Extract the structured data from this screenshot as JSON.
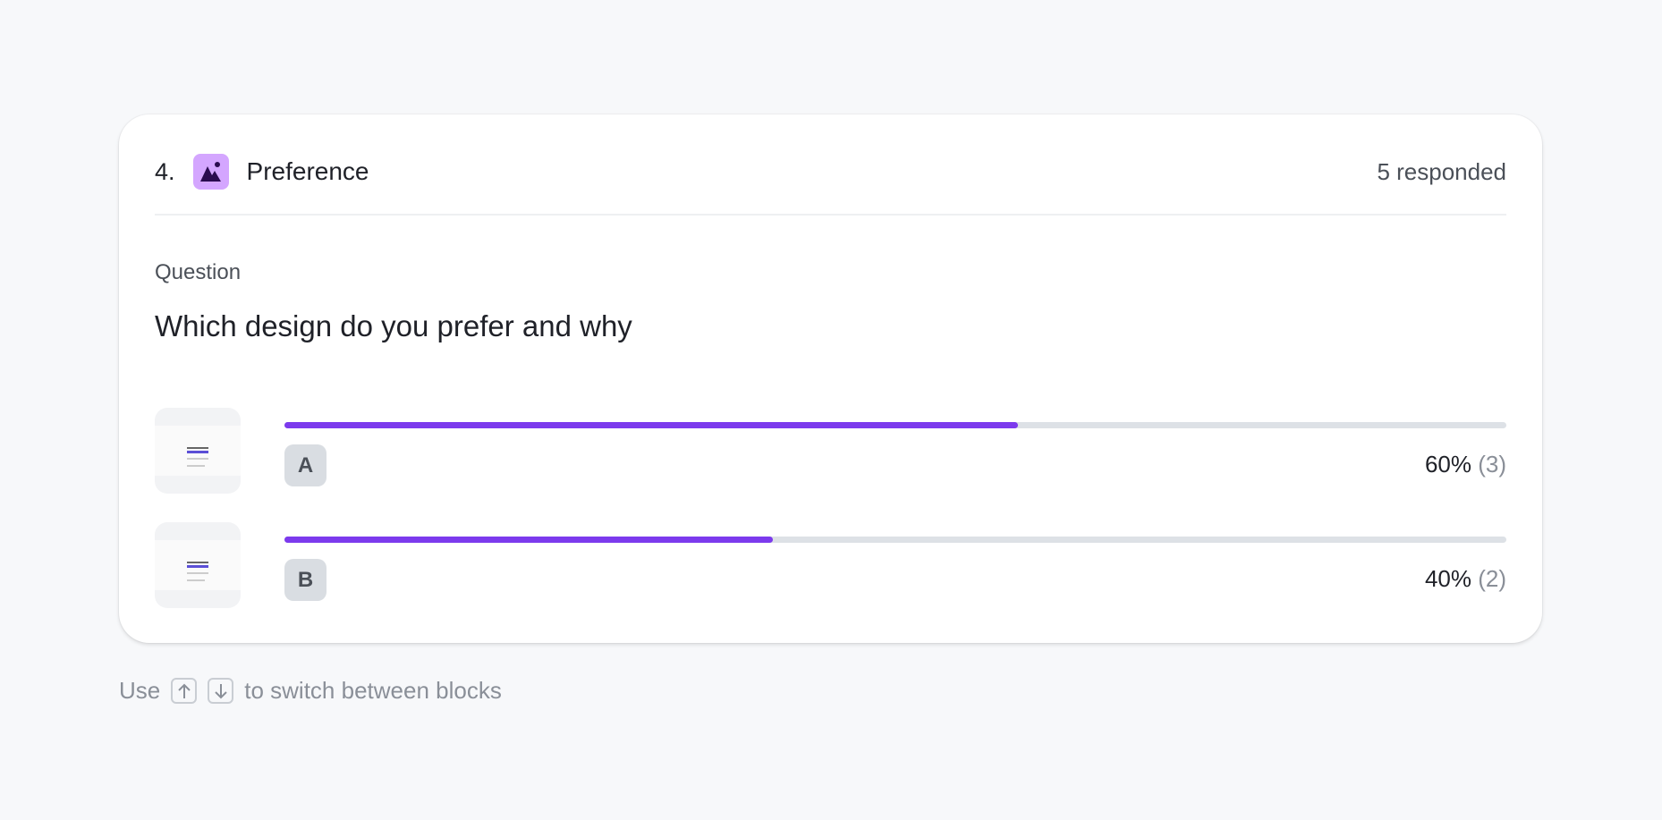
{
  "block": {
    "number": "4.",
    "type_icon": "image-mountain-icon",
    "title": "Preference",
    "responded": "5 responded",
    "question_label": "Question",
    "question": "Which design do you prefer and why",
    "accent_color": "#7c3aed",
    "options": [
      {
        "label": "A",
        "percent_text": "60%",
        "count_text": "(3)",
        "percent": 60
      },
      {
        "label": "B",
        "percent_text": "40%",
        "count_text": "(2)",
        "percent": 40
      }
    ]
  },
  "footer": {
    "prefix": "Use",
    "suffix": "to switch between blocks",
    "keys": [
      "arrow-up-icon",
      "arrow-down-icon"
    ]
  }
}
